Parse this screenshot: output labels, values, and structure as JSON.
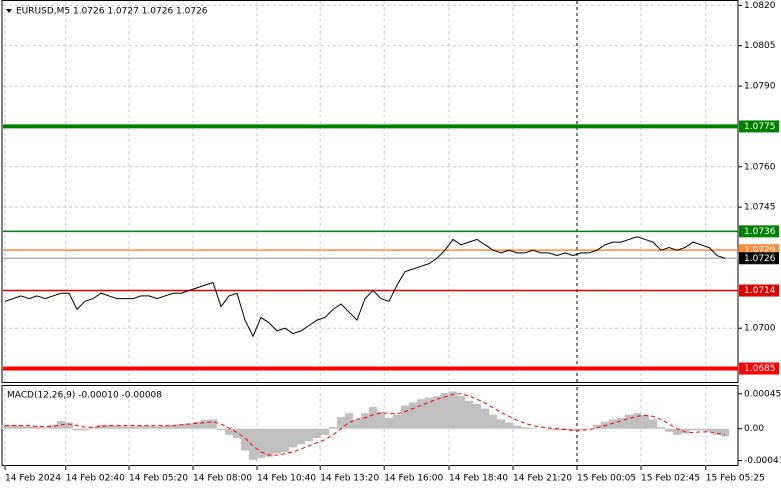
{
  "chart_data": [
    {
      "type": "line",
      "title": "EURUSD,M5  1.0726 1.0727 1.0726 1.0726",
      "color": "#000000",
      "values": [
        1.071,
        1.0711,
        1.0712,
        1.0711,
        1.0712,
        1.0711,
        1.0712,
        1.0713,
        1.0713,
        1.0707,
        1.071,
        1.0711,
        1.0713,
        1.0712,
        1.0711,
        1.0711,
        1.0711,
        1.0712,
        1.0712,
        1.0711,
        1.0712,
        1.0713,
        1.0713,
        1.0714,
        1.0715,
        1.0716,
        1.0717,
        1.0708,
        1.0712,
        1.0713,
        1.0703,
        1.0697,
        1.0704,
        1.0702,
        1.0699,
        1.07,
        1.0698,
        1.0699,
        1.0701,
        1.0703,
        1.0704,
        1.0707,
        1.0709,
        1.0706,
        1.0703,
        1.0711,
        1.0714,
        1.0711,
        1.071,
        1.0716,
        1.0721,
        1.0722,
        1.0723,
        1.0724,
        1.0726,
        1.0729,
        1.0733,
        1.0731,
        1.0732,
        1.0733,
        1.0731,
        1.0729,
        1.0728,
        1.0729,
        1.0728,
        1.0728,
        1.0729,
        1.0728,
        1.0728,
        1.0727,
        1.0728,
        1.0727,
        1.0728,
        1.0728,
        1.0729,
        1.0731,
        1.0732,
        1.0732,
        1.0733,
        1.0734,
        1.0733,
        1.0732,
        1.0729,
        1.073,
        1.0729,
        1.073,
        1.0732,
        1.0731,
        1.073,
        1.0727,
        1.0726
      ],
      "xlim": [
        0,
        91.625
      ],
      "ylim": [
        1.068,
        1.0822
      ],
      "yticks": [
        {
          "value": 1.082,
          "label": "1.0820"
        },
        1.0805,
        {
          "value": 1.079,
          "label": "1.0790"
        },
        {
          "value": 1.076,
          "label": "1.0760"
        },
        1.0745,
        {
          "value": 1.07,
          "label": "1.0700"
        }
      ],
      "xticks": [
        {
          "value": 0,
          "label": "14 Feb 2024"
        },
        {
          "value": 7.6,
          "label": "14 Feb 02:40"
        },
        {
          "value": 15.5,
          "label": "14 Feb 05:20"
        },
        {
          "value": 23.5,
          "label": "14 Feb 08:00"
        },
        {
          "value": 31.5,
          "label": "14 Feb 10:40"
        },
        {
          "value": 39.4,
          "label": "14 Feb 13:20"
        },
        {
          "value": 47.4,
          "label": "14 Feb 16:00"
        },
        {
          "value": 55.5,
          "label": "14 Feb 18:40"
        },
        {
          "value": 63.5,
          "label": "14 Feb 21:20"
        },
        {
          "value": 71.5,
          "label": "15 Feb 00:05",
          "style": "separator"
        },
        {
          "value": 79.5,
          "label": "15 Feb 02:45"
        },
        {
          "value": 87.6,
          "label": "15 Feb 05:25"
        }
      ],
      "grid": true,
      "levels": [
        {
          "value": 1.0775,
          "color": "#008000",
          "style": "thick"
        },
        {
          "value": 1.0736,
          "color": "#008000",
          "style": "thin"
        },
        {
          "value": 1.0729,
          "color": "#ff8c3c",
          "style": "thin"
        },
        {
          "value": 1.0726,
          "color": "#b4b4b4",
          "style": "thin",
          "label_color": "#000000"
        },
        {
          "value": 1.0714,
          "color": "#e00000",
          "style": "thin"
        },
        {
          "value": 1.0685,
          "color": "#ff0000",
          "style": "thick"
        }
      ]
    },
    {
      "type": "macd",
      "title": "MACD(12,26,9) -0.00010 -0.00008",
      "xlim": [
        0,
        91.625
      ],
      "ylim": [
        -0.00048,
        0.00055
      ],
      "yticks": [
        0.00045,
        {
          "value": 0,
          "label": "0.00"
        },
        -0.00041
      ],
      "series": [
        {
          "type": "bar",
          "color": "#c0c0c0",
          "values": [
            5e-05,
            5e-05,
            4e-05,
            3e-05,
            3e-05,
            2e-05,
            5e-05,
            0.0001,
            8e-05,
            -2e-05,
            -2e-05,
            2e-05,
            5e-05,
            5e-05,
            4e-05,
            3e-05,
            3e-05,
            4e-05,
            4e-05,
            3e-05,
            4e-05,
            5e-05,
            6e-05,
            7e-05,
            9e-05,
            0.00011,
            0.00012,
            -2e-05,
            -8e-05,
            -0.00012,
            -0.00028,
            -0.0004,
            -0.00038,
            -0.00036,
            -0.00032,
            -0.0003,
            -0.00024,
            -0.0002,
            -0.00016,
            -0.00012,
            -8e-05,
            2e-05,
            0.00015,
            0.0002,
            0.00012,
            0.0002,
            0.00028,
            0.00022,
            0.00014,
            0.00018,
            0.0003,
            0.00034,
            0.00038,
            0.0004,
            0.00042,
            0.00046,
            0.00048,
            0.00042,
            0.00036,
            0.00032,
            0.00026,
            0.00018,
            0.00012,
            8e-05,
            4e-05,
            2e-05,
            1e-05,
            0,
            -1e-05,
            -2e-05,
            -2e-05,
            -3e-05,
            -2e-05,
            0,
            5e-05,
            9e-05,
            0.00012,
            0.00014,
            0.00018,
            0.0002,
            0.00018,
            0.00012,
            2e-05,
            -4e-05,
            -8e-05,
            -6e-05,
            -2e-05,
            -2e-05,
            -4e-05,
            -8e-05,
            -0.0001
          ]
        },
        {
          "type": "line",
          "color": "#ff0000",
          "style": "dashed",
          "values": [
            4e-05,
            4e-05,
            4e-05,
            4e-05,
            3e-05,
            3e-05,
            3e-05,
            5e-05,
            6e-05,
            4e-05,
            2e-05,
            2e-05,
            3e-05,
            4e-05,
            4e-05,
            4e-05,
            4e-05,
            4e-05,
            4e-05,
            4e-05,
            4e-05,
            4e-05,
            5e-05,
            6e-05,
            7e-05,
            8e-05,
            9e-05,
            6e-05,
            1e-05,
            -5e-05,
            -0.00012,
            -0.00022,
            -0.0003,
            -0.00034,
            -0.00034,
            -0.00032,
            -0.0003,
            -0.00026,
            -0.00022,
            -0.00018,
            -0.00014,
            -8e-05,
            0,
            8e-05,
            0.00012,
            0.00014,
            0.00018,
            0.0002,
            0.0002,
            0.00019,
            0.00022,
            0.00026,
            0.0003,
            0.00034,
            0.00038,
            0.00041,
            0.00044,
            0.00045,
            0.00042,
            0.00038,
            0.00033,
            0.00027,
            0.00021,
            0.00016,
            0.00011,
            7e-05,
            4e-05,
            2e-05,
            1e-05,
            0,
            -1e-05,
            -2e-05,
            -2e-05,
            -1e-05,
            1e-05,
            4e-05,
            7e-05,
            0.0001,
            0.00013,
            0.00016,
            0.00017,
            0.00016,
            0.00012,
            6e-05,
            0,
            -4e-05,
            -5e-05,
            -4e-05,
            -4e-05,
            -6e-05,
            -8e-05
          ]
        }
      ]
    }
  ]
}
